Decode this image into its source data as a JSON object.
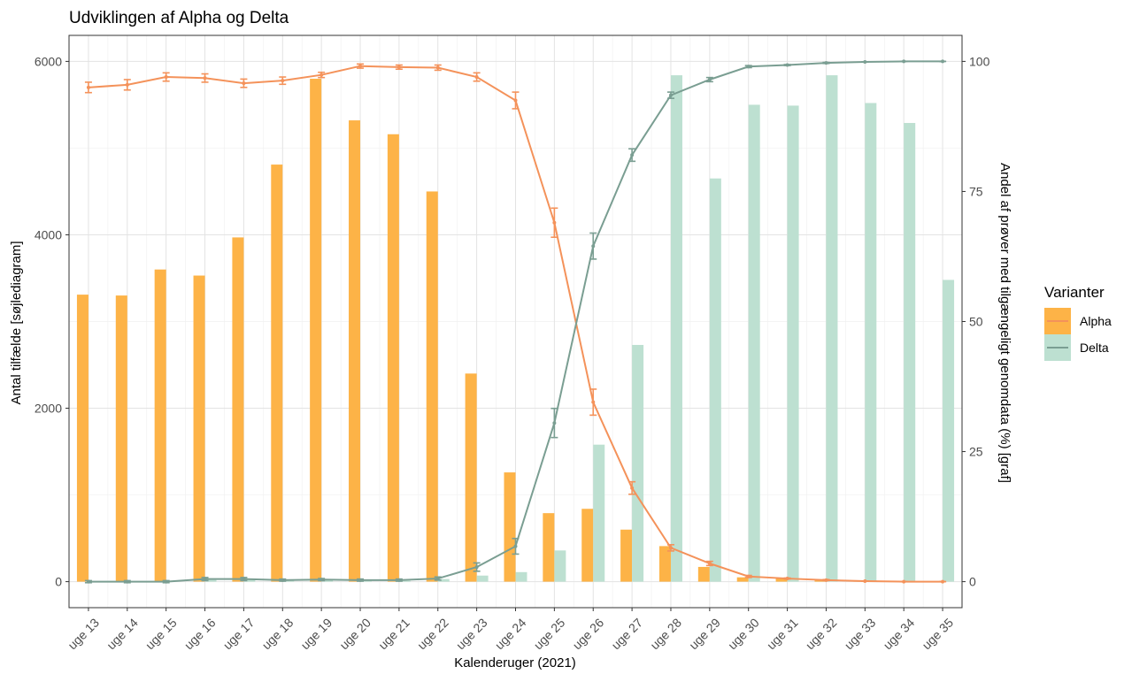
{
  "chart_data": {
    "type": "bar",
    "title": "Udviklingen af Alpha og Delta",
    "xlabel": "Kalenderuger (2021)",
    "ylabel": "Antal tilfælde [søjlediagram]",
    "y2label": "Andel af prøver med tilgængeligt genomdata (%) [graf]",
    "categories": [
      "uge 13",
      "uge 14",
      "uge 15",
      "uge 16",
      "uge 17",
      "uge 18",
      "uge 19",
      "uge 20",
      "uge 21",
      "uge 22",
      "uge 23",
      "uge 24",
      "uge 25",
      "uge 26",
      "uge 27",
      "uge 28",
      "uge 29",
      "uge 30",
      "uge 31",
      "uge 32",
      "uge 33",
      "uge 34",
      "uge 35"
    ],
    "ylim": [
      -300,
      6300
    ],
    "y_ticks": [
      0,
      2000,
      4000,
      6000
    ],
    "y2lim": [
      -5,
      105
    ],
    "y2_ticks": [
      0,
      25,
      50,
      75,
      100
    ],
    "grid": true,
    "legend": {
      "title": "Varianter",
      "position": "right",
      "entries": [
        "Alpha",
        "Delta"
      ]
    },
    "bar_series": [
      {
        "name": "Alpha",
        "color": "#FDB347",
        "values": [
          3310,
          3300,
          3600,
          3530,
          3970,
          4810,
          5800,
          5320,
          5160,
          4500,
          2400,
          1260,
          790,
          840,
          600,
          410,
          170,
          50,
          40,
          20,
          10,
          0,
          0
        ]
      },
      {
        "name": "Delta",
        "color": "#BDE0D1",
        "values": [
          0,
          0,
          0,
          20,
          20,
          10,
          20,
          10,
          10,
          30,
          70,
          110,
          360,
          1580,
          2730,
          5840,
          4650,
          5500,
          5490,
          5840,
          5520,
          5290,
          3480
        ]
      }
    ],
    "line_series": [
      {
        "name": "Alpha",
        "color": "#F4925A",
        "values": [
          95,
          95.5,
          97,
          96.8,
          95.8,
          96.3,
          97.4,
          99.1,
          98.9,
          98.8,
          97,
          92.5,
          69,
          34.5,
          18,
          6.5,
          3.5,
          1,
          0.6,
          0.3,
          0.1,
          0,
          0
        ],
        "err": [
          1,
          1,
          0.8,
          0.8,
          0.8,
          0.7,
          0.5,
          0.4,
          0.4,
          0.5,
          0.8,
          1.6,
          2.8,
          2.5,
          1.2,
          0.6,
          0.4,
          0.2,
          0.1,
          0.1,
          0,
          0,
          0
        ]
      },
      {
        "name": "Delta",
        "color": "#7A9E92",
        "values": [
          0,
          0,
          0,
          0.5,
          0.5,
          0.3,
          0.4,
          0.3,
          0.3,
          0.6,
          2.8,
          6.8,
          30.5,
          64.5,
          82,
          93.5,
          96.5,
          99,
          99.3,
          99.7,
          99.9,
          100,
          100
        ],
        "err": [
          0.2,
          0.2,
          0.2,
          0.3,
          0.3,
          0.2,
          0.2,
          0.2,
          0.2,
          0.3,
          0.8,
          1.5,
          2.8,
          2.5,
          1.2,
          0.6,
          0.4,
          0.2,
          0.1,
          0.1,
          0,
          0,
          0
        ]
      }
    ]
  }
}
